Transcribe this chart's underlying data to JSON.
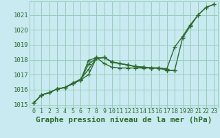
{
  "background_color": "#c8eaf0",
  "plot_bg_color": "#c8eaf0",
  "grid_color": "#99ccbb",
  "line_color": "#2d6a2d",
  "title": "Graphe pression niveau de la mer (hPa)",
  "ylim": [
    1014.8,
    1021.9
  ],
  "xlim": [
    -0.5,
    23.5
  ],
  "yticks": [
    1015,
    1016,
    1017,
    1018,
    1019,
    1020,
    1021
  ],
  "xtick_labels": [
    "0",
    "1",
    "2",
    "3",
    "4",
    "5",
    "6",
    "7",
    "8",
    "9",
    "10",
    "11",
    "12",
    "13",
    "14",
    "15",
    "16",
    "17",
    "18",
    "19",
    "20",
    "21",
    "22",
    "23"
  ],
  "lines": [
    {
      "x": [
        0,
        1,
        2,
        3,
        4,
        5,
        6,
        7,
        8,
        9,
        10,
        11,
        12,
        13,
        14,
        15,
        16,
        17,
        18,
        19,
        20,
        21,
        22,
        23
      ],
      "y": [
        1015.1,
        1015.65,
        1015.8,
        1016.05,
        1016.15,
        1016.45,
        1016.7,
        1017.35,
        1018.1,
        1018.15,
        1017.85,
        1017.75,
        1017.65,
        1017.55,
        1017.5,
        1017.45,
        1017.45,
        1017.4,
        1018.85,
        1019.55,
        1020.35,
        1021.0,
        1021.5,
        1021.7
      ]
    },
    {
      "x": [
        0,
        1,
        2,
        3,
        4,
        5,
        6,
        7,
        8,
        9,
        10,
        11,
        12,
        13,
        14,
        15,
        16,
        17,
        18,
        19,
        20,
        21,
        22,
        23
      ],
      "y": [
        1015.1,
        1015.65,
        1015.8,
        1016.05,
        1016.15,
        1016.4,
        1016.65,
        1017.0,
        1018.1,
        1018.15,
        1017.85,
        1017.75,
        1017.65,
        1017.55,
        1017.5,
        1017.45,
        1017.45,
        1017.3,
        1017.3,
        1019.45,
        1020.25,
        1021.0,
        1021.5,
        1021.7
      ]
    },
    {
      "x": [
        0,
        1,
        2,
        3,
        4,
        5,
        6,
        7,
        8,
        9,
        10,
        11,
        12,
        13,
        14,
        15,
        16,
        17,
        18
      ],
      "y": [
        1015.1,
        1015.65,
        1015.8,
        1016.05,
        1016.15,
        1016.4,
        1016.65,
        1017.7,
        1018.1,
        1018.15,
        1017.85,
        1017.75,
        1017.65,
        1017.55,
        1017.5,
        1017.45,
        1017.45,
        1017.3,
        1017.3
      ]
    },
    {
      "x": [
        3,
        4,
        5,
        6,
        7,
        8,
        9,
        10,
        11,
        12,
        13,
        14,
        15,
        16,
        17,
        18
      ],
      "y": [
        1016.05,
        1016.15,
        1016.4,
        1016.65,
        1017.95,
        1018.15,
        1017.75,
        1017.5,
        1017.45,
        1017.45,
        1017.45,
        1017.45,
        1017.45,
        1017.45,
        1017.3,
        1017.3
      ]
    }
  ],
  "marker": "+",
  "markersize": 4,
  "linewidth": 1.0,
  "title_fontsize": 8,
  "tick_fontsize": 6.5
}
